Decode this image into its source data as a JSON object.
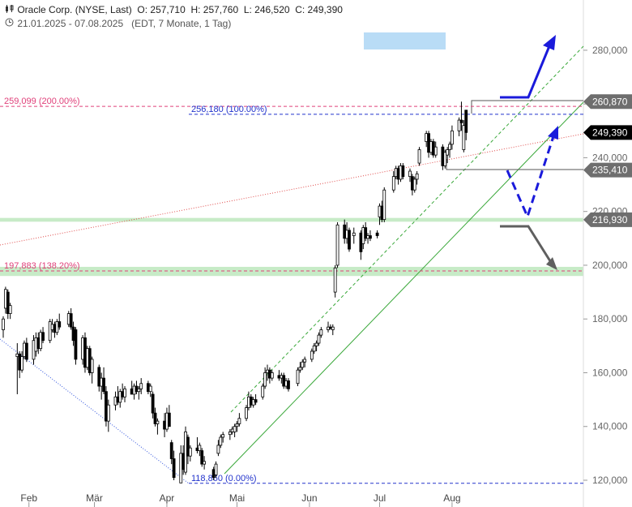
{
  "header": {
    "company": "Oracle Corp. (NYSE, Last)",
    "ohlc": "O: 257,710  H: 257,760  L: 246,520  C: 249,390",
    "range": "21.01.2025 - 07.08.2025",
    "meta": "(EDT, 7 Monate, 1 Tag)"
  },
  "chart_data": {
    "type": "candlestick",
    "ylim": [
      115,
      305
    ],
    "yticks": [
      "120,000",
      "140,000",
      "160,000",
      "180,000",
      "200,000",
      "220,000",
      "240,000",
      "260,000",
      "280,000"
    ],
    "ytick_values": [
      120,
      140,
      160,
      180,
      200,
      220,
      240,
      260,
      280
    ],
    "xticks": [
      "Feb",
      "Mär",
      "Apr",
      "Mai",
      "Jun",
      "Jul",
      "Aug"
    ],
    "xtick_dates": [
      "2025-02-01",
      "2025-03-01",
      "2025-04-01",
      "2025-05-01",
      "2025-06-01",
      "2025-07-01",
      "2025-08-01"
    ],
    "price_tags": [
      {
        "label": "260,870",
        "value": 260.87,
        "color": "#6e6e6e"
      },
      {
        "label": "249,390",
        "value": 249.39,
        "color": "#000000"
      },
      {
        "label": "235,410",
        "value": 235.41,
        "color": "#6e6e6e"
      },
      {
        "label": "216,930",
        "value": 216.93,
        "color": "#6e6e6e"
      }
    ],
    "levels": [
      {
        "label": "259,099 (200.00%)",
        "value": 259.099,
        "color": "#e0407a"
      },
      {
        "label": "256,180 (100.00%)",
        "value": 256.18,
        "color": "#2233cc"
      },
      {
        "label": "197,883 (138.20%)",
        "value": 197.883,
        "color": "#e0407a"
      },
      {
        "label": "118,860 (0.00%)",
        "value": 118.86,
        "color": "#2233cc"
      }
    ],
    "zones": [
      {
        "from": 196.0,
        "to": 199.4,
        "color": "#bde8bd"
      },
      {
        "from": 216.2,
        "to": 217.6,
        "color": "#bde8bd"
      }
    ],
    "candles": [
      {
        "d": "2025-01-21",
        "o": 176.0,
        "h": 181.0,
        "l": 173.0,
        "c": 180.0
      },
      {
        "d": "2025-01-22",
        "o": 184.0,
        "h": 192.0,
        "l": 182.0,
        "c": 191.0
      },
      {
        "d": "2025-01-23",
        "o": 190.0,
        "h": 191.0,
        "l": 180.0,
        "c": 182.0
      },
      {
        "d": "2025-01-24",
        "o": 182.0,
        "h": 186.0,
        "l": 180.0,
        "c": 185.0
      },
      {
        "d": "2025-01-27",
        "o": 166.0,
        "h": 171.0,
        "l": 152.0,
        "c": 167.0
      },
      {
        "d": "2025-01-28",
        "o": 167.0,
        "h": 168.0,
        "l": 158.0,
        "c": 161.0
      },
      {
        "d": "2025-01-29",
        "o": 161.0,
        "h": 168.0,
        "l": 160.0,
        "c": 166.0
      },
      {
        "d": "2025-01-30",
        "o": 166.0,
        "h": 172.0,
        "l": 165.0,
        "c": 171.0
      },
      {
        "d": "2025-01-31",
        "o": 171.0,
        "h": 173.0,
        "l": 164.0,
        "c": 165.0
      },
      {
        "d": "2025-02-03",
        "o": 165.0,
        "h": 174.0,
        "l": 163.0,
        "c": 172.0
      },
      {
        "d": "2025-02-04",
        "o": 168.0,
        "h": 175.0,
        "l": 166.0,
        "c": 173.0
      },
      {
        "d": "2025-02-05",
        "o": 173.0,
        "h": 175.0,
        "l": 167.0,
        "c": 169.0
      },
      {
        "d": "2025-02-06",
        "o": 169.0,
        "h": 176.0,
        "l": 168.0,
        "c": 175.0
      },
      {
        "d": "2025-02-07",
        "o": 175.0,
        "h": 177.0,
        "l": 171.0,
        "c": 172.0
      },
      {
        "d": "2025-02-10",
        "o": 172.0,
        "h": 180.0,
        "l": 171.0,
        "c": 179.0
      },
      {
        "d": "2025-02-11",
        "o": 176.0,
        "h": 180.0,
        "l": 175.0,
        "c": 178.0
      },
      {
        "d": "2025-02-12",
        "o": 178.0,
        "h": 179.0,
        "l": 173.0,
        "c": 175.0
      },
      {
        "d": "2025-02-13",
        "o": 175.0,
        "h": 180.0,
        "l": 174.0,
        "c": 179.0
      },
      {
        "d": "2025-02-14",
        "o": 179.0,
        "h": 182.0,
        "l": 176.0,
        "c": 177.0
      },
      {
        "d": "2025-02-18",
        "o": 178.0,
        "h": 183.0,
        "l": 177.0,
        "c": 182.0
      },
      {
        "d": "2025-02-19",
        "o": 182.0,
        "h": 184.0,
        "l": 176.0,
        "c": 177.0
      },
      {
        "d": "2025-02-20",
        "o": 177.0,
        "h": 179.0,
        "l": 170.0,
        "c": 172.0
      },
      {
        "d": "2025-02-21",
        "o": 176.0,
        "h": 177.0,
        "l": 163.0,
        "c": 165.0
      },
      {
        "d": "2025-02-24",
        "o": 165.0,
        "h": 174.0,
        "l": 163.0,
        "c": 173.0
      },
      {
        "d": "2025-02-25",
        "o": 173.0,
        "h": 175.0,
        "l": 160.0,
        "c": 162.0
      },
      {
        "d": "2025-02-26",
        "o": 162.0,
        "h": 170.0,
        "l": 161.0,
        "c": 169.0
      },
      {
        "d": "2025-02-27",
        "o": 169.0,
        "h": 170.0,
        "l": 159.0,
        "c": 160.0
      },
      {
        "d": "2025-02-28",
        "o": 160.0,
        "h": 166.0,
        "l": 156.0,
        "c": 165.0
      },
      {
        "d": "2025-03-03",
        "o": 162.0,
        "h": 163.0,
        "l": 153.0,
        "c": 155.0
      },
      {
        "d": "2025-03-04",
        "o": 155.0,
        "h": 160.0,
        "l": 150.0,
        "c": 158.0
      },
      {
        "d": "2025-03-05",
        "o": 158.0,
        "h": 162.0,
        "l": 152.0,
        "c": 153.0
      },
      {
        "d": "2025-03-06",
        "o": 153.0,
        "h": 155.0,
        "l": 140.0,
        "c": 142.0
      },
      {
        "d": "2025-03-07",
        "o": 142.0,
        "h": 150.0,
        "l": 138.0,
        "c": 148.0
      },
      {
        "d": "2025-03-10",
        "o": 148.0,
        "h": 153.0,
        "l": 146.0,
        "c": 151.0
      },
      {
        "d": "2025-03-11",
        "o": 151.0,
        "h": 155.0,
        "l": 148.0,
        "c": 149.0
      },
      {
        "d": "2025-03-12",
        "o": 149.0,
        "h": 154.0,
        "l": 147.0,
        "c": 153.0
      },
      {
        "d": "2025-03-13",
        "o": 153.0,
        "h": 156.0,
        "l": 150.0,
        "c": 151.0
      },
      {
        "d": "2025-03-14",
        "o": 151.0,
        "h": 155.0,
        "l": 149.0,
        "c": 154.0
      },
      {
        "d": "2025-03-17",
        "o": 154.0,
        "h": 157.0,
        "l": 152.0,
        "c": 152.0
      },
      {
        "d": "2025-03-18",
        "o": 152.0,
        "h": 156.0,
        "l": 150.0,
        "c": 155.0
      },
      {
        "d": "2025-03-19",
        "o": 155.0,
        "h": 157.0,
        "l": 152.0,
        "c": 153.0
      },
      {
        "d": "2025-03-20",
        "o": 153.0,
        "h": 155.0,
        "l": 150.0,
        "c": 154.0
      },
      {
        "d": "2025-03-21",
        "o": 154.0,
        "h": 158.0,
        "l": 152.0,
        "c": 156.0
      },
      {
        "d": "2025-03-24",
        "o": 156.0,
        "h": 157.0,
        "l": 152.0,
        "c": 153.0
      },
      {
        "d": "2025-03-25",
        "o": 153.0,
        "h": 156.0,
        "l": 151.0,
        "c": 155.0
      },
      {
        "d": "2025-03-26",
        "o": 152.0,
        "h": 153.0,
        "l": 143.0,
        "c": 145.0
      },
      {
        "d": "2025-03-27",
        "o": 145.0,
        "h": 147.0,
        "l": 140.0,
        "c": 141.0
      },
      {
        "d": "2025-03-28",
        "o": 141.0,
        "h": 143.0,
        "l": 137.0,
        "c": 142.0
      },
      {
        "d": "2025-03-31",
        "o": 142.0,
        "h": 145.0,
        "l": 136.0,
        "c": 139.0
      },
      {
        "d": "2025-04-01",
        "o": 139.0,
        "h": 147.0,
        "l": 138.0,
        "c": 145.0
      },
      {
        "d": "2025-04-02",
        "o": 145.0,
        "h": 148.0,
        "l": 140.0,
        "c": 140.0
      },
      {
        "d": "2025-04-03",
        "o": 134.0,
        "h": 135.0,
        "l": 126.0,
        "c": 128.0
      },
      {
        "d": "2025-04-04",
        "o": 128.0,
        "h": 131.0,
        "l": 120.0,
        "c": 121.0
      },
      {
        "d": "2025-04-07",
        "o": 119.0,
        "h": 133.0,
        "l": 118.9,
        "c": 130.0
      },
      {
        "d": "2025-04-08",
        "o": 130.0,
        "h": 133.0,
        "l": 122.0,
        "c": 124.0
      },
      {
        "d": "2025-04-09",
        "o": 123.0,
        "h": 140.0,
        "l": 122.0,
        "c": 138.0
      },
      {
        "d": "2025-04-10",
        "o": 136.0,
        "h": 137.0,
        "l": 126.0,
        "c": 129.0
      },
      {
        "d": "2025-04-11",
        "o": 129.0,
        "h": 133.0,
        "l": 127.0,
        "c": 132.0
      },
      {
        "d": "2025-04-14",
        "o": 132.0,
        "h": 136.0,
        "l": 130.0,
        "c": 131.0
      },
      {
        "d": "2025-04-15",
        "o": 131.0,
        "h": 134.0,
        "l": 129.0,
        "c": 133.0
      },
      {
        "d": "2025-04-16",
        "o": 131.0,
        "h": 132.0,
        "l": 125.0,
        "c": 126.0
      },
      {
        "d": "2025-04-17",
        "o": 126.0,
        "h": 129.0,
        "l": 124.0,
        "c": 127.0
      },
      {
        "d": "2025-04-21",
        "o": 124.0,
        "h": 125.0,
        "l": 120.0,
        "c": 121.0
      },
      {
        "d": "2025-04-22",
        "o": 122.0,
        "h": 127.0,
        "l": 121.0,
        "c": 126.0
      },
      {
        "d": "2025-04-23",
        "o": 130.0,
        "h": 135.0,
        "l": 129.0,
        "c": 133.0
      },
      {
        "d": "2025-04-24",
        "o": 133.0,
        "h": 137.0,
        "l": 132.0,
        "c": 136.0
      },
      {
        "d": "2025-04-25",
        "o": 136.0,
        "h": 138.0,
        "l": 134.0,
        "c": 137.0
      },
      {
        "d": "2025-04-28",
        "o": 137.0,
        "h": 139.0,
        "l": 135.0,
        "c": 138.0
      },
      {
        "d": "2025-04-29",
        "o": 138.0,
        "h": 140.0,
        "l": 137.0,
        "c": 139.0
      },
      {
        "d": "2025-04-30",
        "o": 138.0,
        "h": 141.0,
        "l": 136.0,
        "c": 140.0
      },
      {
        "d": "2025-05-01",
        "o": 140.0,
        "h": 142.0,
        "l": 138.0,
        "c": 141.0
      },
      {
        "d": "2025-05-02",
        "o": 141.0,
        "h": 145.0,
        "l": 140.0,
        "c": 143.0
      },
      {
        "d": "2025-05-05",
        "o": 143.0,
        "h": 148.0,
        "l": 142.0,
        "c": 147.0
      },
      {
        "d": "2025-05-06",
        "o": 147.0,
        "h": 153.0,
        "l": 146.0,
        "c": 151.0
      },
      {
        "d": "2025-05-07",
        "o": 151.0,
        "h": 152.0,
        "l": 147.0,
        "c": 148.0
      },
      {
        "d": "2025-05-08",
        "o": 148.0,
        "h": 151.0,
        "l": 147.0,
        "c": 150.0
      },
      {
        "d": "2025-05-09",
        "o": 150.0,
        "h": 152.0,
        "l": 148.0,
        "c": 149.0
      },
      {
        "d": "2025-05-12",
        "o": 151.0,
        "h": 156.0,
        "l": 150.0,
        "c": 155.0
      },
      {
        "d": "2025-05-13",
        "o": 155.0,
        "h": 162.0,
        "l": 154.0,
        "c": 160.0
      },
      {
        "d": "2025-05-14",
        "o": 160.0,
        "h": 163.0,
        "l": 157.0,
        "c": 161.0
      },
      {
        "d": "2025-05-15",
        "o": 161.0,
        "h": 162.0,
        "l": 156.0,
        "c": 158.0
      },
      {
        "d": "2025-05-16",
        "o": 158.0,
        "h": 161.0,
        "l": 157.0,
        "c": 160.0
      },
      {
        "d": "2025-05-19",
        "o": 159.0,
        "h": 161.0,
        "l": 157.0,
        "c": 158.0
      },
      {
        "d": "2025-05-20",
        "o": 158.0,
        "h": 160.0,
        "l": 156.0,
        "c": 159.0
      },
      {
        "d": "2025-05-21",
        "o": 159.0,
        "h": 160.0,
        "l": 154.0,
        "c": 155.0
      },
      {
        "d": "2025-05-22",
        "o": 155.0,
        "h": 158.0,
        "l": 154.0,
        "c": 157.0
      },
      {
        "d": "2025-05-23",
        "o": 157.0,
        "h": 158.0,
        "l": 153.0,
        "c": 154.0
      },
      {
        "d": "2025-05-27",
        "o": 156.0,
        "h": 162.0,
        "l": 155.0,
        "c": 161.0
      },
      {
        "d": "2025-05-28",
        "o": 161.0,
        "h": 164.0,
        "l": 160.0,
        "c": 162.0
      },
      {
        "d": "2025-05-29",
        "o": 162.0,
        "h": 165.0,
        "l": 161.0,
        "c": 164.0
      },
      {
        "d": "2025-05-30",
        "o": 164.0,
        "h": 166.0,
        "l": 162.0,
        "c": 165.0
      },
      {
        "d": "2025-06-02",
        "o": 165.0,
        "h": 169.0,
        "l": 164.0,
        "c": 168.0
      },
      {
        "d": "2025-06-03",
        "o": 168.0,
        "h": 171.0,
        "l": 167.0,
        "c": 170.0
      },
      {
        "d": "2025-06-04",
        "o": 170.0,
        "h": 172.0,
        "l": 168.0,
        "c": 171.0
      },
      {
        "d": "2025-06-05",
        "o": 171.0,
        "h": 175.0,
        "l": 170.0,
        "c": 174.0
      },
      {
        "d": "2025-06-06",
        "o": 174.0,
        "h": 177.0,
        "l": 173.0,
        "c": 176.0
      },
      {
        "d": "2025-06-09",
        "o": 176.0,
        "h": 179.0,
        "l": 175.0,
        "c": 177.0
      },
      {
        "d": "2025-06-10",
        "o": 177.0,
        "h": 178.0,
        "l": 176.0,
        "c": 176.5
      },
      {
        "d": "2025-06-11",
        "o": 176.0,
        "h": 178.0,
        "l": 174.0,
        "c": 177.0
      },
      {
        "d": "2025-06-12",
        "o": 190.0,
        "h": 200.0,
        "l": 188.0,
        "c": 199.0
      },
      {
        "d": "2025-06-13",
        "o": 200.0,
        "h": 216.0,
        "l": 199.0,
        "c": 215.0
      },
      {
        "d": "2025-06-16",
        "o": 215.0,
        "h": 217.0,
        "l": 208.0,
        "c": 210.0
      },
      {
        "d": "2025-06-17",
        "o": 210.0,
        "h": 216.0,
        "l": 208.0,
        "c": 213.0
      },
      {
        "d": "2025-06-18",
        "o": 213.0,
        "h": 214.0,
        "l": 205.0,
        "c": 206.0
      },
      {
        "d": "2025-06-20",
        "o": 211.0,
        "h": 214.0,
        "l": 208.0,
        "c": 212.0
      },
      {
        "d": "2025-06-23",
        "o": 212.0,
        "h": 213.0,
        "l": 202.0,
        "c": 205.0
      },
      {
        "d": "2025-06-24",
        "o": 208.0,
        "h": 215.0,
        "l": 206.0,
        "c": 214.0
      },
      {
        "d": "2025-06-25",
        "o": 214.0,
        "h": 216.0,
        "l": 209.0,
        "c": 210.0
      },
      {
        "d": "2025-06-26",
        "o": 210.0,
        "h": 212.0,
        "l": 208.0,
        "c": 211.0
      },
      {
        "d": "2025-06-27",
        "o": 211.0,
        "h": 213.0,
        "l": 209.0,
        "c": 210.0
      },
      {
        "d": "2025-06-30",
        "o": 212.0,
        "h": 213.0,
        "l": 210.0,
        "c": 211.0
      },
      {
        "d": "2025-07-01",
        "o": 218.0,
        "h": 223.0,
        "l": 215.0,
        "c": 222.0
      },
      {
        "d": "2025-07-02",
        "o": 222.0,
        "h": 224.0,
        "l": 216.0,
        "c": 217.0
      },
      {
        "d": "2025-07-03",
        "o": 217.0,
        "h": 229.0,
        "l": 216.0,
        "c": 228.0
      },
      {
        "d": "2025-07-07",
        "o": 228.0,
        "h": 235.0,
        "l": 227.0,
        "c": 233.0
      },
      {
        "d": "2025-07-08",
        "o": 233.0,
        "h": 237.0,
        "l": 232.0,
        "c": 236.0
      },
      {
        "d": "2025-07-09",
        "o": 236.0,
        "h": 237.0,
        "l": 230.0,
        "c": 232.0
      },
      {
        "d": "2025-07-10",
        "o": 232.0,
        "h": 238.0,
        "l": 231.0,
        "c": 237.0
      },
      {
        "d": "2025-07-11",
        "o": 237.0,
        "h": 238.0,
        "l": 232.0,
        "c": 233.0
      },
      {
        "d": "2025-07-14",
        "o": 233.0,
        "h": 236.0,
        "l": 231.0,
        "c": 235.0
      },
      {
        "d": "2025-07-15",
        "o": 233.0,
        "h": 234.0,
        "l": 226.0,
        "c": 228.0
      },
      {
        "d": "2025-07-16",
        "o": 228.0,
        "h": 233.0,
        "l": 227.0,
        "c": 232.0
      },
      {
        "d": "2025-07-17",
        "o": 232.0,
        "h": 235.0,
        "l": 230.0,
        "c": 234.0
      },
      {
        "d": "2025-07-18",
        "o": 238.0,
        "h": 244.0,
        "l": 237.0,
        "c": 243.0
      },
      {
        "d": "2025-07-21",
        "o": 246.0,
        "h": 250.0,
        "l": 244.0,
        "c": 249.0
      },
      {
        "d": "2025-07-22",
        "o": 249.0,
        "h": 250.0,
        "l": 240.0,
        "c": 242.0
      },
      {
        "d": "2025-07-23",
        "o": 242.0,
        "h": 247.0,
        "l": 241.0,
        "c": 246.0
      },
      {
        "d": "2025-07-24",
        "o": 246.0,
        "h": 247.0,
        "l": 240.0,
        "c": 241.0
      },
      {
        "d": "2025-07-25",
        "o": 241.0,
        "h": 246.0,
        "l": 240.0,
        "c": 244.0
      },
      {
        "d": "2025-07-28",
        "o": 244.0,
        "h": 245.0,
        "l": 235.4,
        "c": 237.0
      },
      {
        "d": "2025-07-29",
        "o": 237.0,
        "h": 243.0,
        "l": 236.0,
        "c": 242.0
      },
      {
        "d": "2025-07-30",
        "o": 241.0,
        "h": 244.0,
        "l": 238.0,
        "c": 243.0
      },
      {
        "d": "2025-07-31",
        "o": 243.0,
        "h": 246.0,
        "l": 240.0,
        "c": 245.0
      },
      {
        "d": "2025-08-01",
        "o": 245.0,
        "h": 252.0,
        "l": 243.0,
        "c": 250.0
      },
      {
        "d": "2025-08-04",
        "o": 250.0,
        "h": 255.0,
        "l": 248.0,
        "c": 254.0
      },
      {
        "d": "2025-08-05",
        "o": 254.0,
        "h": 260.87,
        "l": 250.0,
        "c": 253.0
      },
      {
        "d": "2025-08-06",
        "o": 243.0,
        "h": 254.0,
        "l": 242.0,
        "c": 252.0
      },
      {
        "d": "2025-08-07",
        "o": 257.71,
        "h": 257.76,
        "l": 246.52,
        "c": 249.39
      }
    ]
  }
}
